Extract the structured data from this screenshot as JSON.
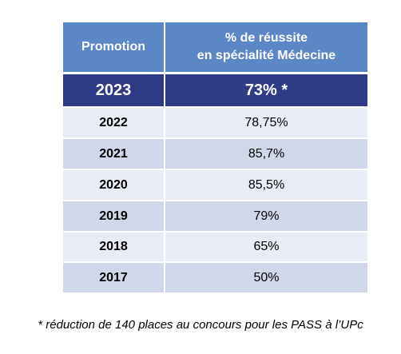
{
  "table": {
    "header": {
      "promotion": "Promotion",
      "result": [
        "% de réussite",
        "en spécialité Médecine"
      ]
    },
    "rows": [
      [
        "2023",
        "73% *"
      ],
      [
        "2022",
        "78,75%"
      ],
      [
        "2021",
        "85,7%"
      ],
      [
        "2020",
        "85,5%"
      ],
      [
        "2019",
        "79%"
      ],
      [
        "2018",
        "65%"
      ],
      [
        "2017",
        "50%"
      ]
    ]
  },
  "footnote": "* réduction de 140 places au concours pour les PASS à l’UPc"
}
